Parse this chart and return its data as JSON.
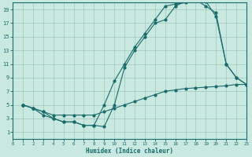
{
  "title": "",
  "xlabel": "Humidex (Indice chaleur)",
  "xlim": [
    0,
    23
  ],
  "ylim": [
    0,
    20
  ],
  "xticks": [
    0,
    1,
    2,
    3,
    4,
    5,
    6,
    7,
    8,
    9,
    10,
    11,
    12,
    13,
    14,
    15,
    16,
    17,
    18,
    19,
    20,
    21,
    22,
    23
  ],
  "yticks": [
    1,
    3,
    5,
    7,
    9,
    11,
    13,
    15,
    17,
    19
  ],
  "bg_color": "#c8e8e0",
  "line_color": "#1a6b6b",
  "grid_color": "#a0c8c0",
  "line1_x": [
    1,
    2,
    3,
    4,
    5,
    6,
    7,
    8,
    9,
    10,
    11,
    12,
    13,
    14,
    15,
    16,
    17,
    18,
    19,
    20,
    21,
    22,
    23
  ],
  "line1_y": [
    5,
    4.5,
    4,
    3,
    2.5,
    2.5,
    2,
    2,
    1.8,
    5,
    10.5,
    13,
    15,
    17,
    17.5,
    19.5,
    20.2,
    20.3,
    20.2,
    18,
    11,
    9,
    8
  ],
  "line2_x": [
    1,
    2,
    3,
    4,
    5,
    6,
    7,
    8,
    9,
    10,
    11,
    12,
    13,
    14,
    15,
    16,
    17,
    18,
    19,
    20,
    21,
    22,
    23
  ],
  "line2_y": [
    5,
    4.5,
    3.5,
    3,
    2.5,
    2.5,
    2,
    2,
    5,
    8.5,
    11,
    13.5,
    15.5,
    17.5,
    19.5,
    19.8,
    20.0,
    20.4,
    19.5,
    18.5,
    11,
    9,
    8
  ],
  "line3_x": [
    1,
    2,
    3,
    4,
    5,
    6,
    7,
    8,
    9,
    10,
    11,
    12,
    13,
    14,
    15,
    16,
    17,
    18,
    19,
    20,
    21,
    22,
    23
  ],
  "line3_y": [
    5,
    4.5,
    4,
    3.5,
    3.5,
    3.5,
    3.5,
    3.5,
    4,
    4.5,
    5,
    5.5,
    6,
    6.5,
    7,
    7.2,
    7.4,
    7.5,
    7.6,
    7.7,
    7.8,
    8,
    8
  ]
}
